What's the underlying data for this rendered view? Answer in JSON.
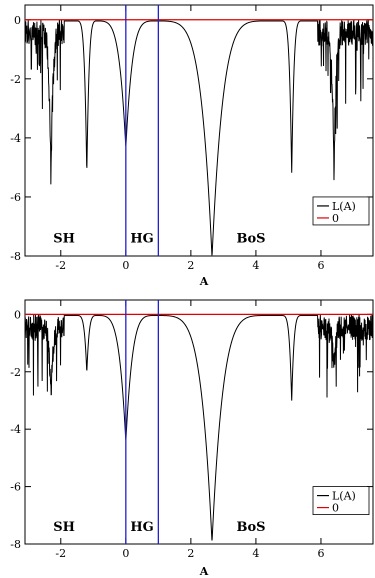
{
  "chart_data": [
    {
      "type": "line",
      "panel": "top",
      "xlabel": "A",
      "ylabel": "",
      "xlim": [
        -3.1,
        7.6
      ],
      "ylim": [
        -8,
        0.5
      ],
      "xticks": [
        -2,
        0,
        2,
        4,
        6
      ],
      "xtick_labels": [
        "-2",
        "0",
        "2",
        "4",
        "6"
      ],
      "yticks": [
        0,
        -2,
        -4,
        -6,
        -8
      ],
      "ytick_labels": [
        "0",
        "-2",
        "-4",
        "-6",
        "-8"
      ],
      "grid": false,
      "legend_position": "right",
      "colors": {
        "series": "#000000",
        "zero": "#e00000",
        "vlines": "#2020d0"
      },
      "series": [
        {
          "name": "L(A)",
          "color": "#000000",
          "x_range": [
            -3.1,
            7.6
          ],
          "dips": [
            {
              "x": -2.3,
              "y": -4.7
            },
            {
              "x": -1.2,
              "y": -5.2
            },
            {
              "x": 0.0,
              "y": -4.3
            },
            {
              "x": 2.65,
              "y": -8.0
            },
            {
              "x": 5.1,
              "y": -5.2
            },
            {
              "x": 6.4,
              "y": -4.6
            }
          ]
        },
        {
          "name": "0",
          "color": "#e00000",
          "values": [
            0,
            0
          ]
        }
      ],
      "vlines": [
        0,
        1
      ],
      "annotations": [
        {
          "text": "SH",
          "x": -1.9,
          "y": -7.4
        },
        {
          "text": "HG",
          "x": 0.5,
          "y": -7.4
        },
        {
          "text": "BoS",
          "x": 3.85,
          "y": -7.4
        }
      ]
    },
    {
      "type": "line",
      "panel": "bottom",
      "xlabel": "A",
      "ylabel": "",
      "xlim": [
        -3.1,
        7.6
      ],
      "ylim": [
        -8,
        0.5
      ],
      "xticks": [
        -2,
        0,
        2,
        4,
        6
      ],
      "xtick_labels": [
        "-2",
        "0",
        "2",
        "4",
        "6"
      ],
      "yticks": [
        0,
        -2,
        -4,
        -6,
        -8
      ],
      "ytick_labels": [
        "0",
        "-2",
        "-4",
        "-6",
        "-8"
      ],
      "grid": false,
      "legend_position": "right",
      "colors": {
        "series": "#000000",
        "zero": "#e00000",
        "vlines": "#2020d0"
      },
      "series": [
        {
          "name": "L(A)",
          "color": "#000000",
          "x_range": [
            -3.1,
            7.6
          ],
          "dips": [
            {
              "x": -2.3,
              "y": -2.4
            },
            {
              "x": -1.2,
              "y": -2.0
            },
            {
              "x": 0.0,
              "y": -4.4
            },
            {
              "x": 2.65,
              "y": -7.9
            },
            {
              "x": 5.1,
              "y": -3.0
            },
            {
              "x": 6.4,
              "y": -1.5
            }
          ]
        },
        {
          "name": "0",
          "color": "#e00000",
          "values": [
            0,
            0
          ]
        }
      ],
      "vlines": [
        0,
        1
      ],
      "annotations": [
        {
          "text": "SH",
          "x": -1.9,
          "y": -7.4
        },
        {
          "text": "HG",
          "x": 0.5,
          "y": -7.4
        },
        {
          "text": "BoS",
          "x": 3.85,
          "y": -7.4
        }
      ]
    }
  ]
}
